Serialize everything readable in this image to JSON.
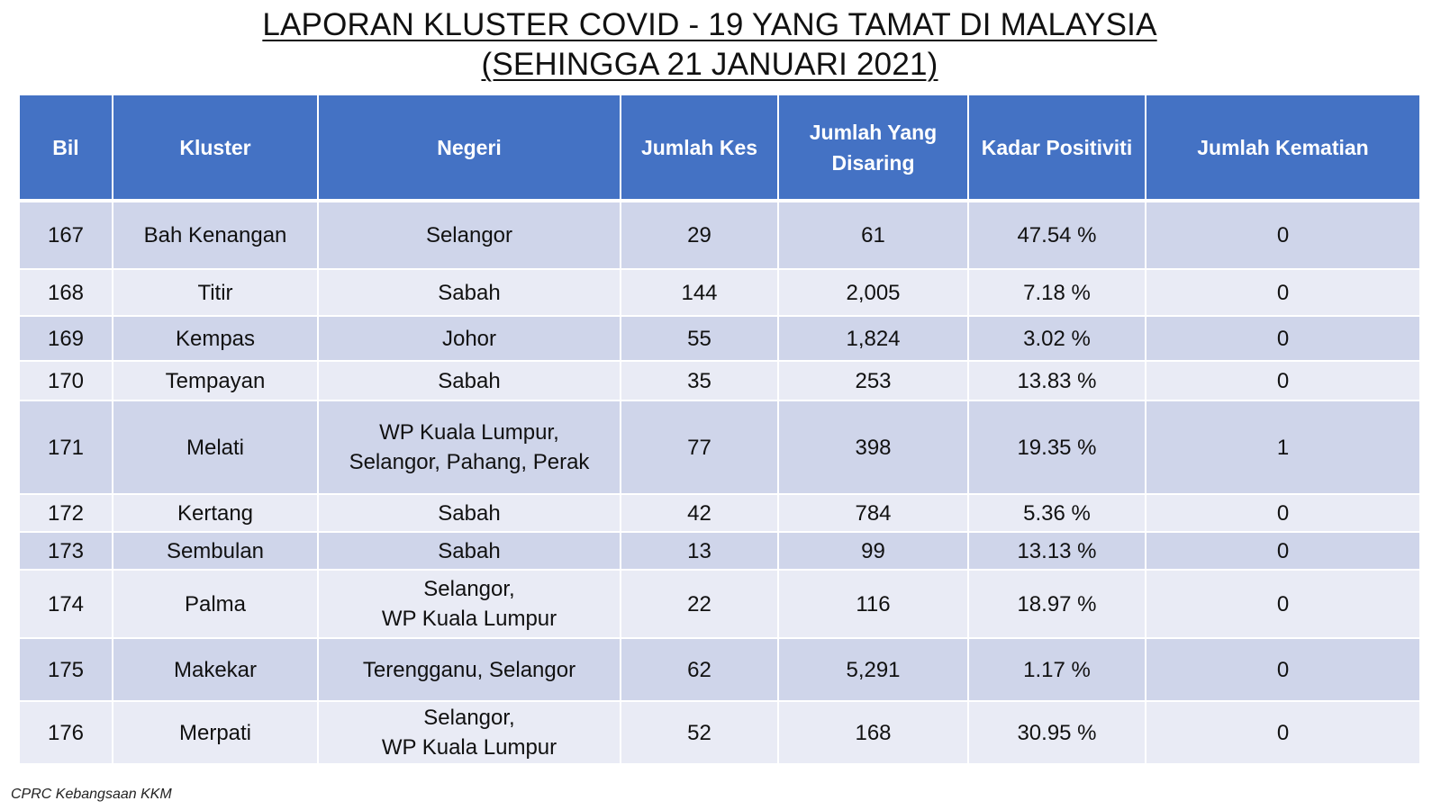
{
  "title": {
    "line1": "LAPORAN KLUSTER COVID - 19 YANG TAMAT DI MALAYSIA",
    "line2": "(SEHINGGA 21 JANUARI 2021)"
  },
  "table": {
    "headers": [
      "Bil",
      "Kluster",
      "Negeri",
      "Jumlah Kes",
      "Jumlah Yang Disaring",
      "Kadar Positiviti",
      "Jumlah Kematian"
    ],
    "rows": [
      {
        "bil": "167",
        "kluster": "Bah Kenangan",
        "negeri": [
          "Selangor"
        ],
        "kes": "29",
        "disaring": "61",
        "positiviti": "47.54 %",
        "kematian": "0"
      },
      {
        "bil": "168",
        "kluster": "Titir",
        "negeri": [
          "Sabah"
        ],
        "kes": "144",
        "disaring": "2,005",
        "positiviti": "7.18 %",
        "kematian": "0"
      },
      {
        "bil": "169",
        "kluster": "Kempas",
        "negeri": [
          "Johor"
        ],
        "kes": "55",
        "disaring": "1,824",
        "positiviti": "3.02 %",
        "kematian": "0"
      },
      {
        "bil": "170",
        "kluster": "Tempayan",
        "negeri": [
          "Sabah"
        ],
        "kes": "35",
        "disaring": "253",
        "positiviti": "13.83 %",
        "kematian": "0"
      },
      {
        "bil": "171",
        "kluster": "Melati",
        "negeri": [
          "WP Kuala Lumpur,",
          "Selangor, Pahang, Perak"
        ],
        "kes": "77",
        "disaring": "398",
        "positiviti": "19.35 %",
        "kematian": "1"
      },
      {
        "bil": "172",
        "kluster": "Kertang",
        "negeri": [
          "Sabah"
        ],
        "kes": "42",
        "disaring": "784",
        "positiviti": "5.36 %",
        "kematian": "0"
      },
      {
        "bil": "173",
        "kluster": "Sembulan",
        "negeri": [
          "Sabah"
        ],
        "kes": "13",
        "disaring": "99",
        "positiviti": "13.13 %",
        "kematian": "0"
      },
      {
        "bil": "174",
        "kluster": "Palma",
        "negeri": [
          "Selangor,",
          "WP Kuala Lumpur"
        ],
        "kes": "22",
        "disaring": "116",
        "positiviti": "18.97 %",
        "kematian": "0"
      },
      {
        "bil": "175",
        "kluster": "Makekar",
        "negeri": [
          "Terengganu, Selangor"
        ],
        "kes": "62",
        "disaring": "5,291",
        "positiviti": "1.17 %",
        "kematian": "0"
      },
      {
        "bil": "176",
        "kluster": "Merpati",
        "negeri": [
          "Selangor,",
          "WP Kuala Lumpur"
        ],
        "kes": "52",
        "disaring": "168",
        "positiviti": "30.95 %",
        "kematian": "0"
      }
    ]
  },
  "footer": "CPRC Kebangsaan KKM",
  "colors": {
    "header_bg": "#4472c4",
    "row_dark": "#cfd5ea",
    "row_light": "#e9ebf5"
  }
}
